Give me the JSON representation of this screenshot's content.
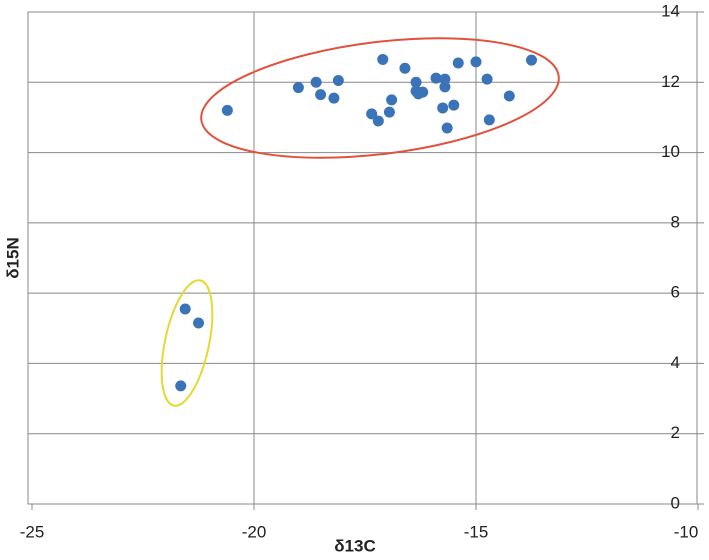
{
  "chart_data": {
    "type": "scatter",
    "x_label": "δ13C",
    "y_label": "δ15N",
    "xlim": [
      -25,
      -10
    ],
    "xticks": [
      -25,
      -20,
      -15,
      -10
    ],
    "ylim": [
      0,
      14
    ],
    "yticks": [
      0,
      2,
      4,
      6,
      8,
      10,
      12,
      14
    ],
    "grid": true,
    "series": [
      {
        "color": "#3a73b8",
        "x": [
          -20.6,
          -19.0,
          -18.6,
          -18.5,
          -18.2,
          -18.1,
          -17.1,
          -17.35,
          -17.2,
          -16.95,
          -16.9,
          -16.6,
          -16.35,
          -16.35,
          -16.3,
          -16.2,
          -15.9,
          -15.7,
          -15.7,
          -15.75,
          -15.65,
          -15.5,
          -15.4,
          -15.0,
          -14.75,
          -14.7,
          -14.25,
          -13.75,
          -21.55,
          -21.25,
          -21.65
        ],
        "values": [
          11.2,
          11.85,
          12.0,
          11.65,
          11.55,
          12.05,
          12.65,
          11.1,
          10.9,
          11.15,
          11.5,
          12.4,
          12.0,
          11.75,
          11.67,
          11.72,
          12.12,
          12.09,
          11.87,
          11.27,
          10.7,
          11.35,
          12.55,
          12.58,
          12.09,
          10.93,
          11.61,
          12.63,
          5.55,
          5.15,
          3.36
        ]
      }
    ]
  }
}
